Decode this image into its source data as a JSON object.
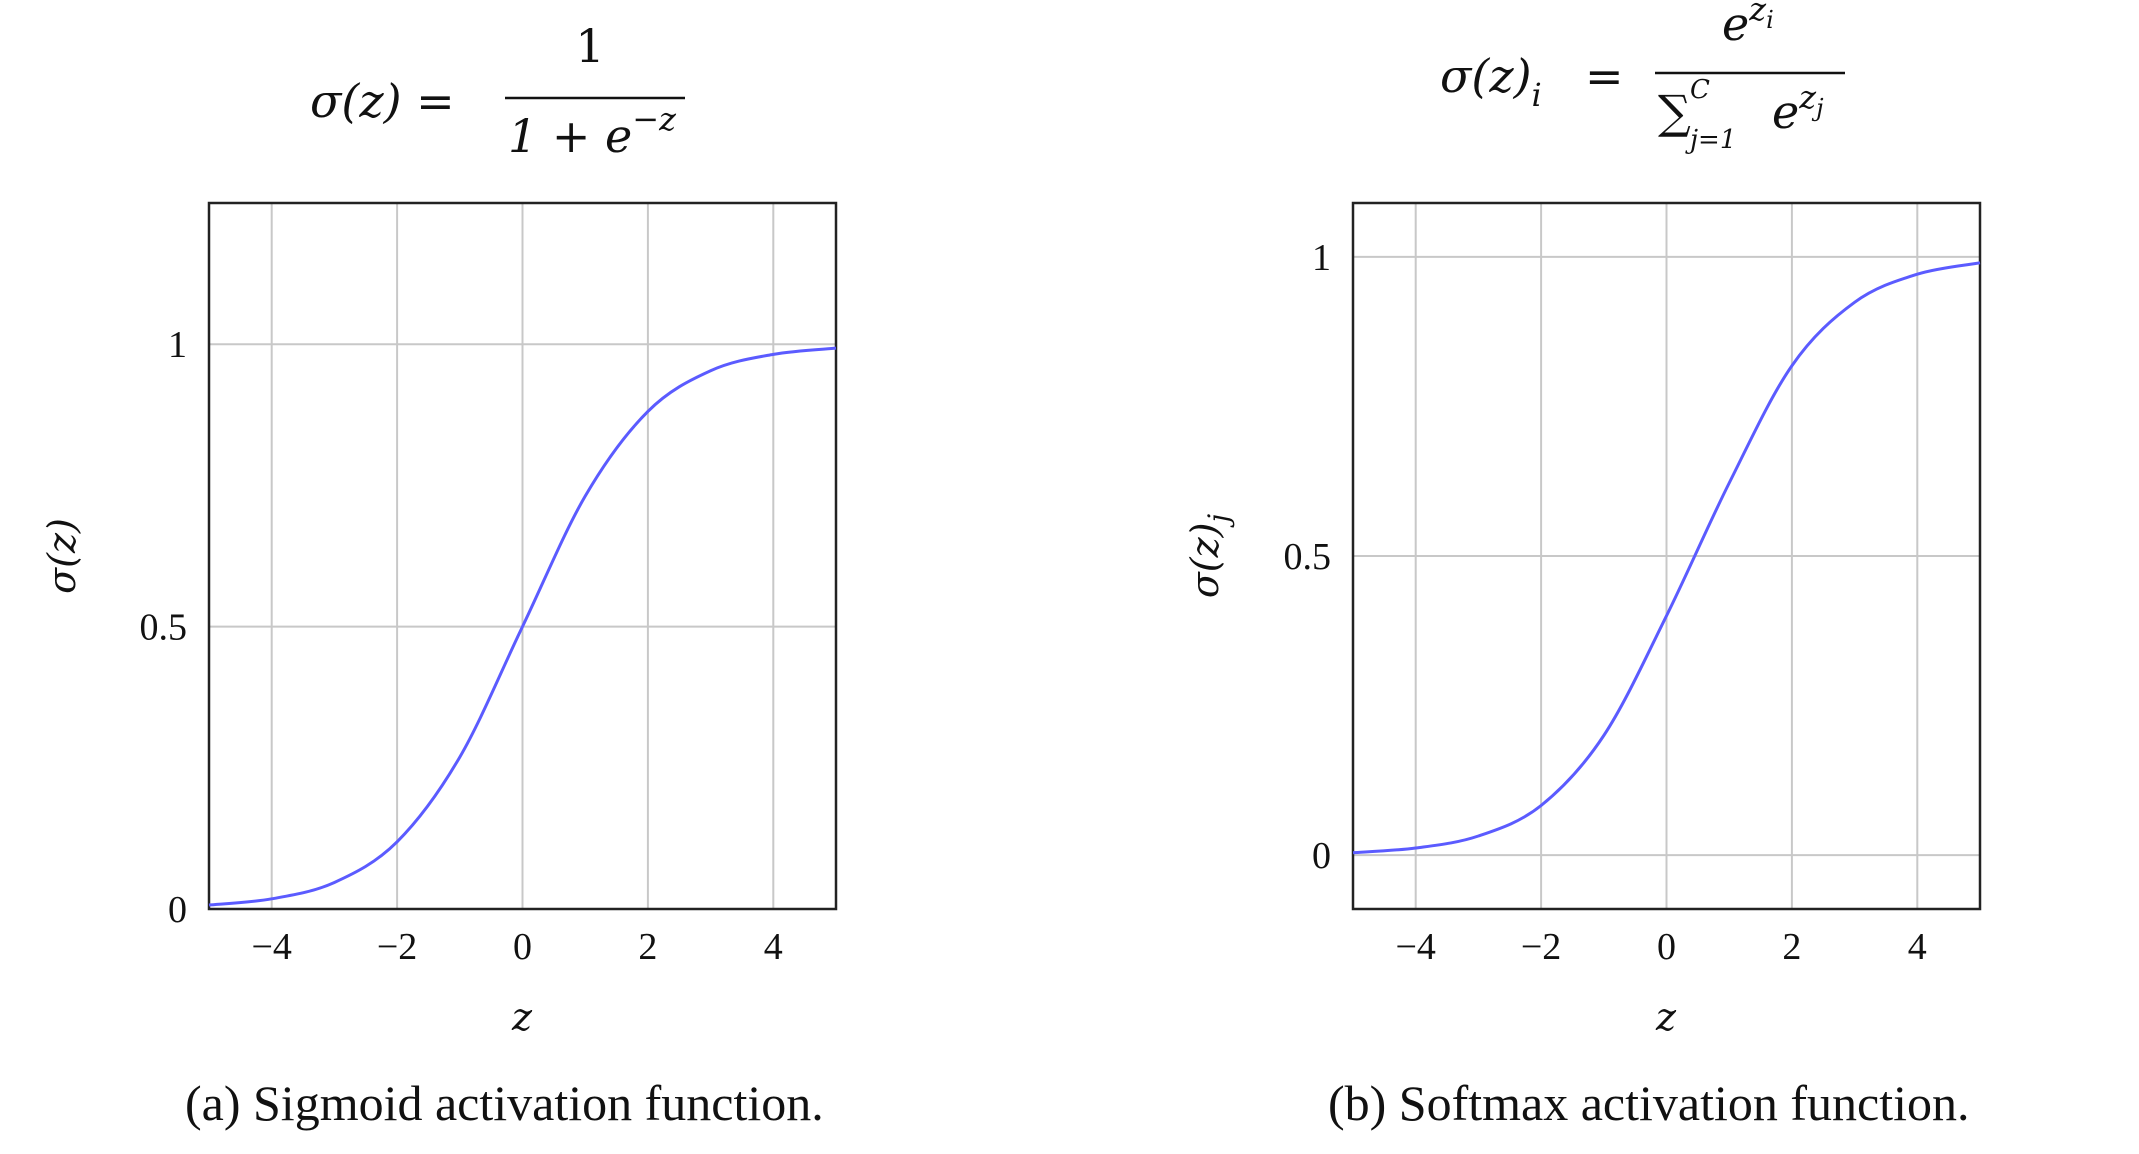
{
  "chart_data": [
    {
      "type": "line",
      "formula": {
        "lhs": "σ(z) =",
        "numerator": "1",
        "denominator_base": "1 + e",
        "denominator_exp": "−z"
      },
      "xlabel": "z",
      "ylabel": "σ(z)",
      "xlim": [
        -5,
        5
      ],
      "ylim": [
        0,
        1.25
      ],
      "x_ticks": [
        -4,
        -2,
        0,
        2,
        4
      ],
      "x_tick_labels": [
        "−4",
        "−2",
        "0",
        "2",
        "4"
      ],
      "y_ticks": [
        0,
        0.5,
        1
      ],
      "y_tick_labels": [
        "0",
        "0.5",
        "1"
      ],
      "grid": true,
      "caption": "(a) Sigmoid activation function.",
      "series": [
        {
          "color": "#5b5bff",
          "x": [
            -5,
            -4,
            -3,
            -2,
            -1,
            0,
            1,
            2,
            3,
            4,
            5
          ],
          "y": [
            0.007,
            0.018,
            0.047,
            0.119,
            0.269,
            0.5,
            0.731,
            0.881,
            0.953,
            0.982,
            0.993
          ]
        }
      ]
    },
    {
      "type": "line",
      "formula": {
        "lhs": "σ(z)",
        "lhs_sub": "i",
        "eq": "=",
        "numerator_base": "e",
        "numerator_exp": "z",
        "numerator_exp_sub": "i",
        "denominator_sum": "∑",
        "denominator_sum_sup": "C",
        "denominator_sum_sub": "j=1",
        "denominator_base": "e",
        "denominator_exp": "z",
        "denominator_exp_sub": "j"
      },
      "xlabel": "z",
      "ylabel": "σ(z)",
      "ylabel_sub": "j",
      "xlim": [
        -5,
        5
      ],
      "ylim": [
        -0.09,
        1.09
      ],
      "x_ticks": [
        -4,
        -2,
        0,
        2,
        4
      ],
      "x_tick_labels": [
        "−4",
        "−2",
        "0",
        "2",
        "4"
      ],
      "y_ticks": [
        0,
        0.5,
        1
      ],
      "y_tick_labels": [
        "0",
        "0.5",
        "1"
      ],
      "grid": true,
      "caption": "(b) Softmax activation function.",
      "series": [
        {
          "color": "#5b5bff",
          "x": [
            -5,
            -4,
            -3,
            -2,
            -1,
            0,
            1,
            2,
            3,
            4,
            5
          ],
          "y": [
            0.004,
            0.012,
            0.032,
            0.083,
            0.2,
            0.4,
            0.622,
            0.818,
            0.924,
            0.971,
            0.99
          ]
        }
      ]
    }
  ]
}
